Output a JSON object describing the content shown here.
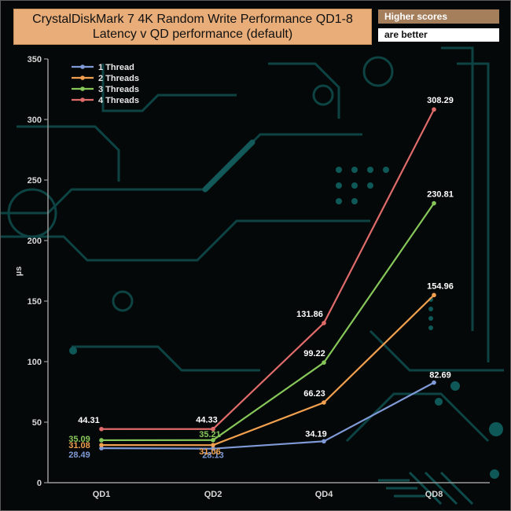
{
  "header": {
    "title_line1": "CrystalDiskMark 7 4K Random Write Performance QD1-8",
    "title_line2": "Latency v QD performance (default)",
    "note_line1": "Higher scores",
    "note_line2": "are better"
  },
  "chart_data": {
    "type": "line",
    "title": "CrystalDiskMark 7 4K Random Write Performance QD1-8 Latency v QD performance (default)",
    "categories": [
      "QD1",
      "QD2",
      "QD4",
      "QD8"
    ],
    "ylabel": "µs",
    "xlabel": "",
    "ylim": [
      0,
      350
    ],
    "yticks": [
      0,
      50,
      100,
      150,
      200,
      250,
      300,
      350
    ],
    "grid": false,
    "legend_position": "top-left",
    "series": [
      {
        "name": "1 Thread",
        "color": "#7f9ad6",
        "values": [
          28.49,
          28.13,
          34.19,
          82.69
        ],
        "labels": [
          "28.49",
          "28.13",
          "34.19",
          "82.69"
        ]
      },
      {
        "name": "2 Threads",
        "color": "#f0a04e",
        "values": [
          31.08,
          31.06,
          66.23,
          154.96
        ],
        "labels": [
          "31.08",
          "31.06",
          "66.23",
          "154.96"
        ]
      },
      {
        "name": "3 Threads",
        "color": "#86c75a",
        "values": [
          35.09,
          35.21,
          99.22,
          230.81
        ],
        "labels": [
          "35.09",
          "35.21",
          "99.22",
          "230.81"
        ]
      },
      {
        "name": "4 Threads",
        "color": "#e06b6b",
        "values": [
          44.31,
          44.33,
          131.86,
          308.29
        ],
        "labels": [
          "44.31",
          "44.33",
          "131.86",
          "308.29"
        ]
      }
    ]
  }
}
